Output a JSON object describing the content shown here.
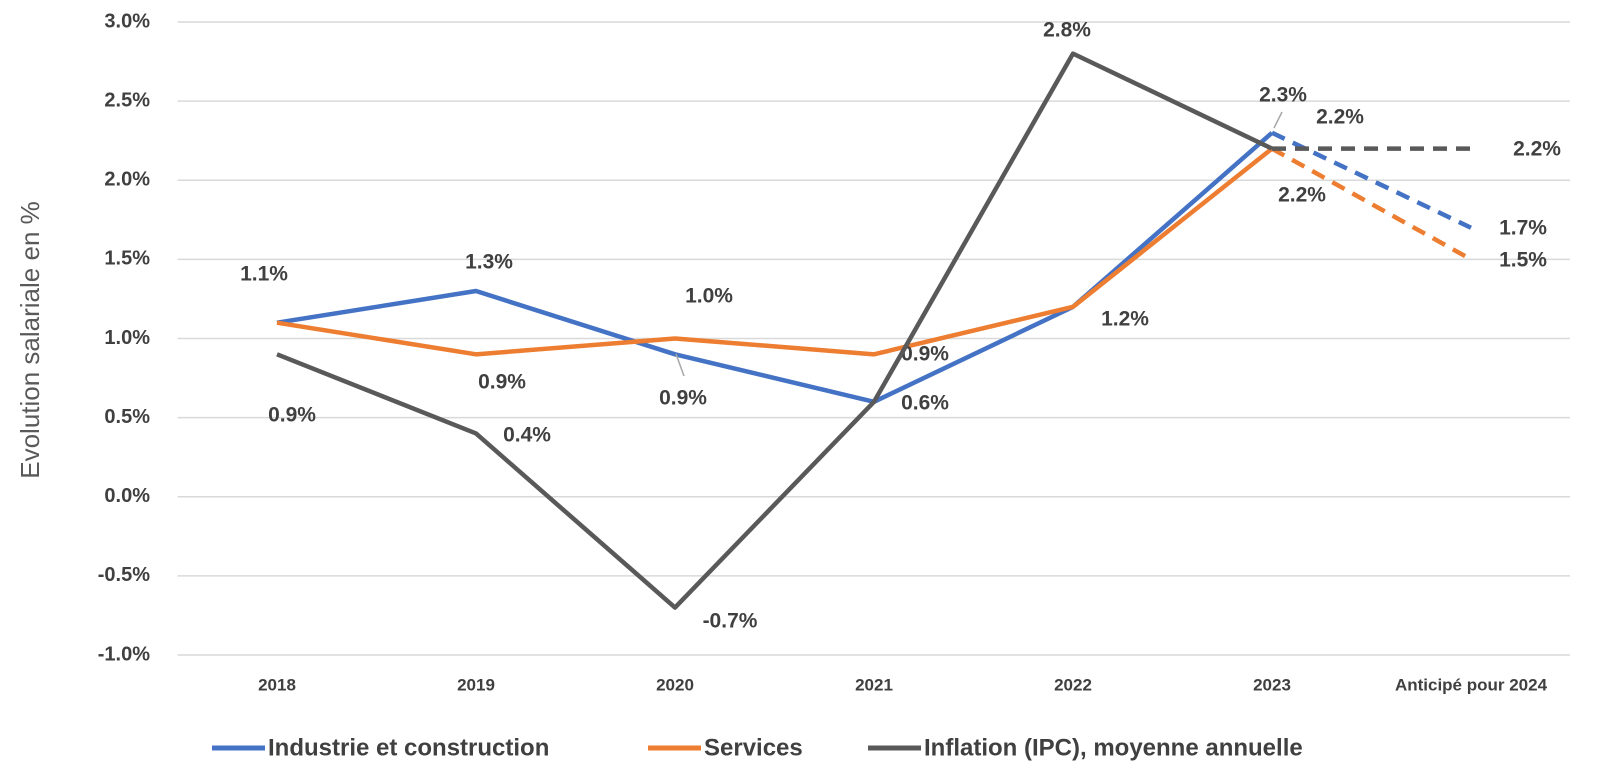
{
  "chart_data": {
    "type": "line",
    "y_axis_label": "Evolution salariale en %",
    "categories": [
      "2018",
      "2019",
      "2020",
      "2021",
      "2022",
      "2023",
      "Anticipé pour 2024"
    ],
    "series": [
      {
        "name": "Industrie et construction",
        "color": "#4472c4",
        "values": [
          1.1,
          1.3,
          0.9,
          0.6,
          1.2,
          2.3,
          1.7
        ],
        "value_labels": [
          "1.1%",
          "1.3%",
          "0.9%",
          "0.6%",
          "1.2%",
          "2.3%",
          "1.7%"
        ]
      },
      {
        "name": "Services",
        "color": "#ed7d31",
        "values": [
          1.1,
          0.9,
          1.0,
          0.9,
          1.2,
          2.2,
          1.5
        ],
        "value_labels": [
          null,
          "0.9%",
          "1.0%",
          "0.9%",
          null,
          "2.2%",
          "1.5%"
        ]
      },
      {
        "name": "Inflation (IPC), moyenne annuelle",
        "color": "#595959",
        "values": [
          0.9,
          0.4,
          -0.7,
          0.6,
          2.8,
          2.2,
          2.2
        ],
        "value_labels": [
          "0.9%",
          "0.4%",
          "-0.7%",
          null,
          "2.8%",
          "2.2%",
          "2.2%"
        ]
      }
    ],
    "ylim": [
      -1.0,
      3.0
    ],
    "yticks": [
      {
        "value": -1.0,
        "label": "-1.0%"
      },
      {
        "value": -0.5,
        "label": "-0.5%"
      },
      {
        "value": 0.0,
        "label": "0.0%"
      },
      {
        "value": 0.5,
        "label": "0.5%"
      },
      {
        "value": 1.0,
        "label": "1.0%"
      },
      {
        "value": 1.5,
        "label": "1.5%"
      },
      {
        "value": 2.0,
        "label": "2.0%"
      },
      {
        "value": 2.5,
        "label": "2.5%"
      },
      {
        "value": 3.0,
        "label": "3.0%"
      }
    ],
    "grid": true,
    "dashed_last_segment": true,
    "legend": "bottom"
  }
}
